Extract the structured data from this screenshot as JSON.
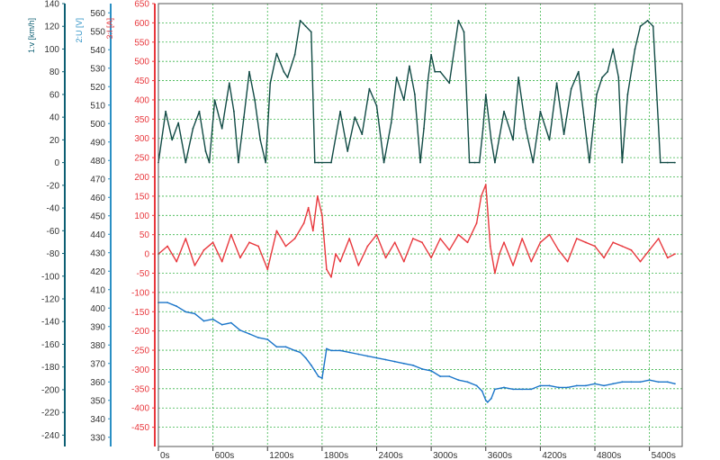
{
  "chart_data": {
    "type": "line",
    "title": "",
    "axes": [
      {
        "id": "v",
        "label": "1:v [km/h]",
        "color": "#0d5f73",
        "range": [
          -250,
          140
        ],
        "ticks": [
          140,
          120,
          100,
          80,
          60,
          40,
          20,
          0,
          -20,
          -40,
          -60,
          -80,
          -100,
          -120,
          -140,
          -160,
          -180,
          -200,
          -220,
          -240
        ]
      },
      {
        "id": "u",
        "label": "2:U [V]",
        "color": "#2a8fc4",
        "range": [
          325,
          565
        ],
        "ticks": [
          560,
          550,
          540,
          530,
          520,
          510,
          500,
          490,
          480,
          470,
          460,
          450,
          440,
          430,
          420,
          410,
          400,
          390,
          380,
          370,
          360,
          350,
          340,
          330
        ]
      },
      {
        "id": "i",
        "label": "3:I [A]",
        "color": "#e8383d",
        "range": [
          -500,
          650
        ],
        "ticks": [
          650,
          600,
          550,
          500,
          450,
          400,
          350,
          300,
          250,
          200,
          150,
          100,
          50,
          0,
          -50,
          -100,
          -150,
          -200,
          -250,
          -300,
          -350,
          -400,
          -450
        ]
      }
    ],
    "x_axis": {
      "range": [
        0,
        5760
      ],
      "tick_labels": [
        "0s",
        "600s",
        "1200s",
        "1800s",
        "2400s",
        "3000s",
        "3600s",
        "4200s",
        "4800s",
        "5400s"
      ],
      "tick_values": [
        0,
        600,
        1200,
        1800,
        2400,
        3000,
        3600,
        4200,
        4800,
        5400
      ]
    },
    "grid": true,
    "legend": "none",
    "series": [
      {
        "axis": "v",
        "color": "#114a45",
        "x": [
          0,
          80,
          150,
          220,
          300,
          380,
          450,
          520,
          560,
          620,
          700,
          780,
          830,
          880,
          940,
          1000,
          1060,
          1120,
          1180,
          1230,
          1300,
          1380,
          1420,
          1500,
          1560,
          1620,
          1680,
          1720,
          1760,
          1800,
          1900,
          2000,
          2080,
          2160,
          2240,
          2320,
          2400,
          2480,
          2560,
          2620,
          2700,
          2760,
          2820,
          2880,
          2920,
          2960,
          3000,
          3040,
          3100,
          3200,
          3300,
          3360,
          3420,
          3480,
          3530,
          3570,
          3600,
          3660,
          3700,
          3800,
          3900,
          3960,
          4040,
          4120,
          4200,
          4300,
          4380,
          4460,
          4540,
          4620,
          4680,
          4740,
          4820,
          4880,
          4940,
          5000,
          5060,
          5100,
          5160,
          5240,
          5300,
          5380,
          5440,
          5520,
          5600,
          5680
        ],
        "values": [
          0,
          45,
          20,
          35,
          0,
          30,
          45,
          10,
          0,
          55,
          30,
          70,
          45,
          0,
          40,
          80,
          55,
          20,
          0,
          70,
          96,
          80,
          75,
          95,
          125,
          120,
          115,
          0,
          0,
          0,
          0,
          45,
          10,
          40,
          25,
          65,
          50,
          0,
          35,
          75,
          55,
          85,
          60,
          0,
          30,
          70,
          95,
          80,
          80,
          70,
          125,
          115,
          0,
          0,
          0,
          30,
          60,
          20,
          0,
          45,
          20,
          75,
          30,
          0,
          45,
          20,
          70,
          25,
          65,
          80,
          40,
          0,
          60,
          75,
          80,
          100,
          75,
          0,
          60,
          100,
          120,
          125,
          120,
          0,
          0,
          0
        ]
      },
      {
        "axis": "i",
        "color": "#e8383d",
        "x": [
          0,
          100,
          200,
          300,
          400,
          500,
          600,
          700,
          800,
          900,
          1000,
          1100,
          1200,
          1300,
          1400,
          1500,
          1600,
          1650,
          1700,
          1750,
          1800,
          1850,
          1900,
          1950,
          2000,
          2100,
          2200,
          2300,
          2400,
          2500,
          2600,
          2700,
          2800,
          2900,
          3000,
          3100,
          3200,
          3300,
          3400,
          3500,
          3550,
          3600,
          3650,
          3700,
          3750,
          3800,
          3900,
          4000,
          4100,
          4200,
          4300,
          4400,
          4500,
          4600,
          4700,
          4800,
          4900,
          5000,
          5100,
          5200,
          5300,
          5400,
          5500,
          5600,
          5680
        ],
        "values": [
          0,
          20,
          -20,
          40,
          -30,
          10,
          30,
          -20,
          50,
          -10,
          30,
          20,
          -40,
          60,
          20,
          40,
          80,
          120,
          60,
          150,
          100,
          -40,
          -60,
          0,
          -20,
          40,
          -30,
          20,
          50,
          -10,
          30,
          -20,
          40,
          30,
          -10,
          40,
          10,
          50,
          30,
          80,
          150,
          180,
          20,
          -50,
          0,
          30,
          -30,
          40,
          -20,
          30,
          50,
          10,
          -20,
          40,
          30,
          20,
          -10,
          30,
          20,
          10,
          -20,
          10,
          40,
          -10,
          0
        ]
      },
      {
        "axis": "u",
        "color": "#1a75c9",
        "x": [
          0,
          100,
          200,
          300,
          400,
          500,
          600,
          700,
          800,
          900,
          1000,
          1100,
          1200,
          1300,
          1400,
          1500,
          1560,
          1620,
          1680,
          1720,
          1760,
          1800,
          1850,
          1900,
          2000,
          2100,
          2200,
          2300,
          2400,
          2500,
          2600,
          2700,
          2800,
          2900,
          3000,
          3100,
          3200,
          3300,
          3400,
          3500,
          3560,
          3600,
          3620,
          3660,
          3700,
          3800,
          3900,
          4000,
          4100,
          4200,
          4300,
          4400,
          4500,
          4600,
          4700,
          4800,
          4900,
          5000,
          5100,
          5200,
          5300,
          5400,
          5500,
          5600,
          5680
        ],
        "values": [
          403,
          403,
          401,
          398,
          397,
          393,
          394,
          391,
          392,
          388,
          386,
          384,
          383,
          379,
          379,
          377,
          376,
          373,
          369,
          366,
          363,
          362,
          378,
          377,
          377,
          376,
          375,
          374,
          373,
          372,
          371,
          370,
          369,
          367,
          366,
          363,
          363,
          361,
          360,
          358,
          355,
          350,
          349,
          351,
          356,
          357,
          356,
          356,
          356,
          358,
          358,
          357,
          357,
          358,
          358,
          359,
          358,
          359,
          360,
          360,
          360,
          361,
          360,
          360,
          359
        ]
      }
    ]
  }
}
